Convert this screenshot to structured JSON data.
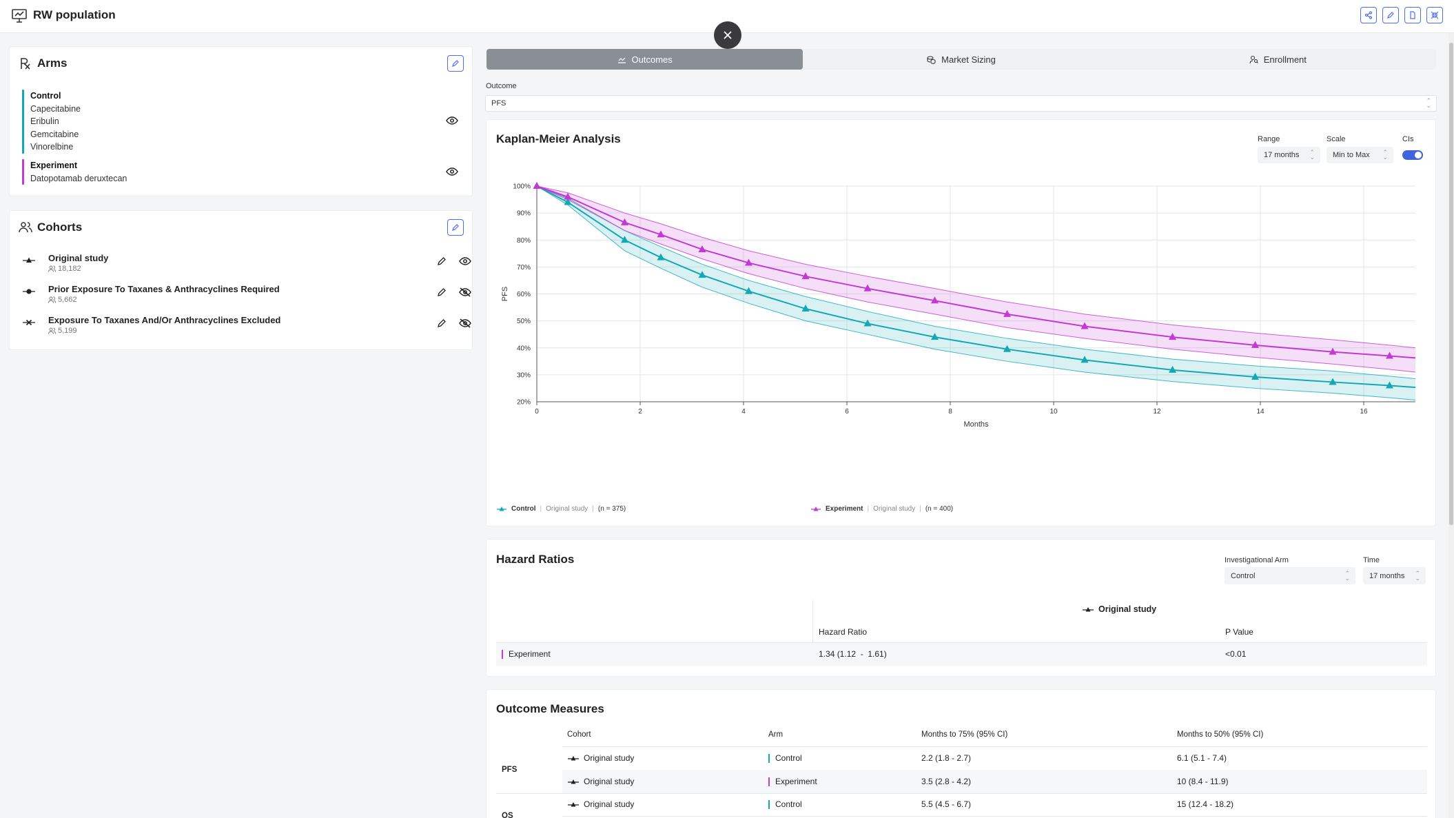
{
  "app": {
    "title": "RW population"
  },
  "arms": {
    "title": "Arms",
    "control": {
      "name": "Control",
      "drugs": [
        "Capecitabine",
        "Eribulin",
        "Gemcitabine",
        "Vinorelbine"
      ],
      "color": "#14a8b4"
    },
    "experiment": {
      "name": "Experiment",
      "drugs": [
        "Datopotamab deruxtecan"
      ],
      "color": "#c13ad1"
    }
  },
  "cohorts": {
    "title": "Cohorts",
    "items": [
      {
        "name": "Original study",
        "count": "18,182"
      },
      {
        "name": "Prior Exposure To Taxanes & Anthracyclines Required",
        "count": "5,662"
      },
      {
        "name": "Exposure To Taxanes And/Or Anthracyclines Excluded",
        "count": "5,199"
      }
    ]
  },
  "tabs": [
    "Outcomes",
    "Market Sizing",
    "Enrollment"
  ],
  "outcome": {
    "label": "Outcome",
    "value": "PFS"
  },
  "km": {
    "title": "Kaplan-Meier Analysis",
    "range_label": "Range",
    "range_value": "17 months",
    "scale_label": "Scale",
    "scale_value": "Min to Max",
    "ci_label": "CIs",
    "legend": [
      {
        "arm": "Control",
        "cohort": "Original study",
        "n": "(n = 375)"
      },
      {
        "arm": "Experiment",
        "cohort": "Original study",
        "n": "(n = 400)"
      }
    ]
  },
  "chart_data": {
    "type": "line",
    "xlabel": "Months",
    "ylabel": "PFS",
    "xlim": [
      0,
      17
    ],
    "ylim": [
      20,
      100
    ],
    "x_ticks": [
      0,
      2,
      4,
      6,
      8,
      10,
      12,
      14,
      16
    ],
    "y_ticks": [
      "20%",
      "30%",
      "40%",
      "50%",
      "60%",
      "70%",
      "80%",
      "90%",
      "100%"
    ],
    "confidence_intervals": true,
    "series": [
      {
        "name": "Control",
        "color": "#14a8b4",
        "x": [
          0,
          0.6,
          1.7,
          2.4,
          3.2,
          4.1,
          5.2,
          6.4,
          7.7,
          9.1,
          10.6,
          12.3,
          13.9,
          15.4,
          16.5
        ],
        "y": [
          100,
          94,
          80,
          73.5,
          67,
          61,
          54.5,
          49,
          44,
          39.5,
          35.5,
          31.8,
          29.2,
          27.3,
          26
        ],
        "lower": [
          100,
          93,
          76,
          69.5,
          62.5,
          56.5,
          50,
          45,
          39.5,
          35,
          31,
          27.5,
          25,
          23.2,
          21.5
        ],
        "upper": [
          100,
          95.5,
          83.5,
          77.5,
          71,
          65,
          59,
          53.5,
          48,
          43.5,
          39.5,
          35.8,
          33.3,
          31.4,
          29.5
        ]
      },
      {
        "name": "Experiment",
        "color": "#c13ad1",
        "x": [
          0,
          0.6,
          1.7,
          2.4,
          3.2,
          4.1,
          5.2,
          6.4,
          7.7,
          9.1,
          10.6,
          12.3,
          13.9,
          15.4,
          16.5
        ],
        "y": [
          100,
          96,
          86.5,
          82,
          76.5,
          71.5,
          66.5,
          62,
          57.5,
          52.5,
          48,
          44,
          41,
          38.5,
          37
        ],
        "lower": [
          100,
          95,
          83.5,
          78.5,
          73,
          67.5,
          62,
          57,
          52.5,
          47.5,
          43.5,
          39.5,
          36.5,
          34,
          32
        ],
        "upper": [
          100,
          97.5,
          90,
          86,
          81,
          76,
          71,
          66.5,
          62,
          57,
          52.5,
          48.5,
          45.5,
          43,
          41
        ]
      }
    ]
  },
  "hazard": {
    "title": "Hazard Ratios",
    "arm_label": "Investigational Arm",
    "arm_value": "Control",
    "time_label": "Time",
    "time_value": "17 months",
    "group": "Original study",
    "col_hr": "Hazard Ratio",
    "col_p": "P Value",
    "rows": [
      {
        "arm": "Experiment",
        "hr": "1.34 (1.12  -  1.61)",
        "p": "<0.01"
      }
    ]
  },
  "measures": {
    "title": "Outcome Measures",
    "cols": [
      "Cohort",
      "Arm",
      "Months to 75% (95% CI)",
      "Months to 50% (95% CI)"
    ],
    "groups": [
      {
        "outcome": "PFS",
        "rows": [
          {
            "cohort": "Original study",
            "arm": "Control",
            "m75": "2.2 (1.8 - 2.7)",
            "m50": "6.1 (5.1 - 7.4)"
          },
          {
            "cohort": "Original study",
            "arm": "Experiment",
            "m75": "3.5 (2.8 - 4.2)",
            "m50": "10 (8.4 - 11.9)"
          }
        ]
      },
      {
        "outcome": "OS",
        "rows": [
          {
            "cohort": "Original study",
            "arm": "Control",
            "m75": "5.5 (4.5 - 6.7)",
            "m50": "15 (12.4 - 18.2)"
          }
        ]
      }
    ]
  }
}
